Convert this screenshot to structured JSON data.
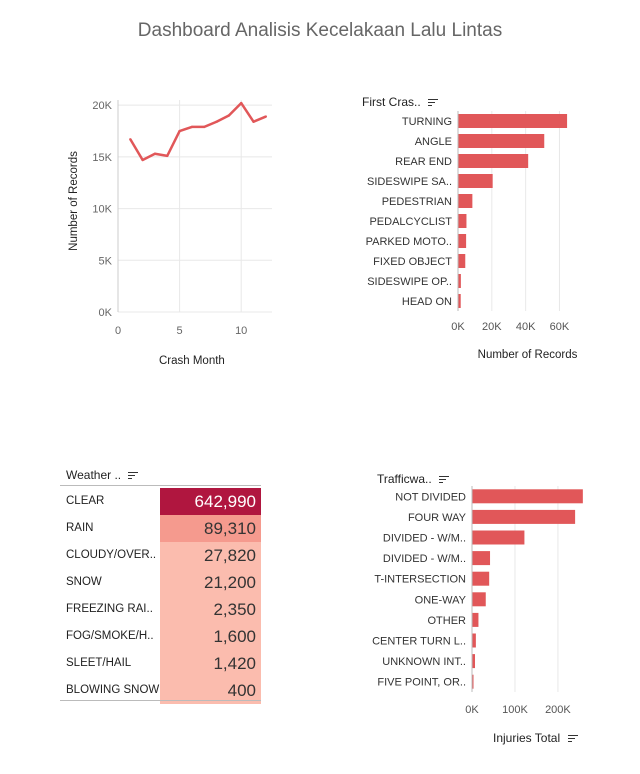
{
  "dashboard_title": "Dashboard Analisis Kecelakaan Lalu Lintas",
  "colors": {
    "bar": "#e15759",
    "grid": "#e8e8e8"
  },
  "chart_data": [
    {
      "type": "line",
      "title": "",
      "xlabel": "Crash Month",
      "ylabel": "Number of Records",
      "x": [
        1,
        2,
        3,
        4,
        5,
        6,
        7,
        8,
        9,
        10,
        11,
        12
      ],
      "values": [
        16700,
        14700,
        15300,
        15100,
        17500,
        17900,
        17900,
        18400,
        19000,
        20200,
        18400,
        18900
      ],
      "xticks": [
        "0",
        "5",
        "10"
      ],
      "yticks": [
        "0K",
        "5K",
        "10K",
        "15K",
        "20K"
      ],
      "xlim": [
        0,
        12.5
      ],
      "ylim": [
        0,
        20500
      ],
      "grid": true
    },
    {
      "type": "bar",
      "orientation": "horizontal",
      "header": "First Cras..",
      "xlabel": "Number of Records",
      "categories": [
        "TURNING",
        "ANGLE",
        "REAR END",
        "SIDESWIPE SA..",
        "PEDESTRIAN",
        "PEDALCYCLIST",
        "PARKED MOTO..",
        "FIXED OBJECT",
        "SIDESWIPE OP..",
        "HEAD ON"
      ],
      "values": [
        64500,
        51000,
        41500,
        20500,
        8500,
        5000,
        4800,
        4300,
        1700,
        1600
      ],
      "xticks": [
        "0K",
        "20K",
        "40K",
        "60K"
      ],
      "xlim": [
        0,
        68000
      ]
    },
    {
      "type": "table",
      "header": "Weather ..",
      "categories": [
        "CLEAR",
        "RAIN",
        "CLOUDY/OVER..",
        "SNOW",
        "FREEZING RAI..",
        "FOG/SMOKE/H..",
        "SLEET/HAIL",
        "BLOWING SNOW"
      ],
      "values": [
        642990,
        89310,
        27820,
        21200,
        2350,
        1600,
        1420,
        400
      ],
      "labels": [
        "642,990",
        "89,310",
        "27,820",
        "21,200",
        "2,350",
        "1,600",
        "1,420",
        "400"
      ]
    },
    {
      "type": "bar",
      "orientation": "horizontal",
      "header": "Trafficwa..",
      "xlabel": "Injuries Total",
      "categories": [
        "NOT DIVIDED",
        "FOUR WAY",
        "DIVIDED - W/M..",
        "DIVIDED - W/M..",
        "T-INTERSECTION",
        "ONE-WAY",
        "OTHER",
        "CENTER TURN L..",
        "UNKNOWN INT..",
        "FIVE POINT, OR.."
      ],
      "values": [
        258000,
        240000,
        122000,
        42000,
        40000,
        32000,
        15000,
        9000,
        7000,
        2000
      ],
      "xticks": [
        "0K",
        "100K",
        "200K"
      ],
      "xlim": [
        0,
        270000
      ]
    }
  ]
}
